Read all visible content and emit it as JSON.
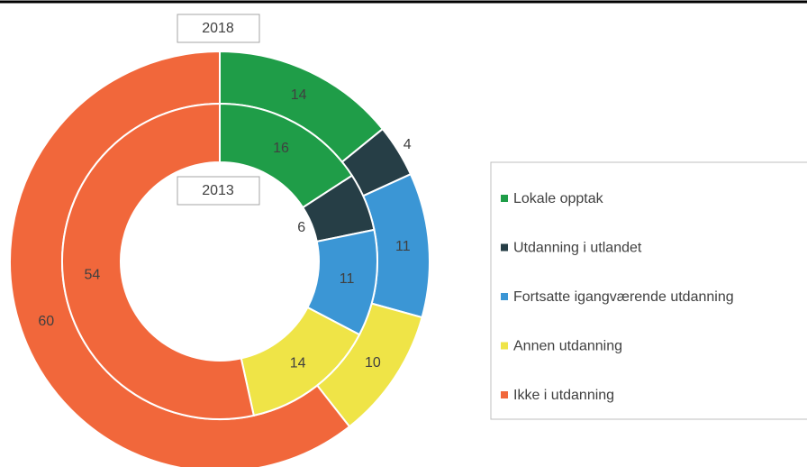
{
  "chart_data": {
    "type": "donut",
    "categories": [
      "Lokale opptak",
      "Utdanning i utlandet",
      "Fortsatte igangværende utdanning",
      "Annen utdanning",
      "Ikke i utdanning"
    ],
    "colors": [
      "#1f9d48",
      "#263e46",
      "#3b96d5",
      "#efe447",
      "#f1673b"
    ],
    "series": [
      {
        "name": "2018",
        "values": [
          14,
          4,
          11,
          10,
          60
        ]
      },
      {
        "name": "2013",
        "values": [
          16,
          6,
          11,
          14,
          54
        ]
      }
    ],
    "legend": "right"
  }
}
